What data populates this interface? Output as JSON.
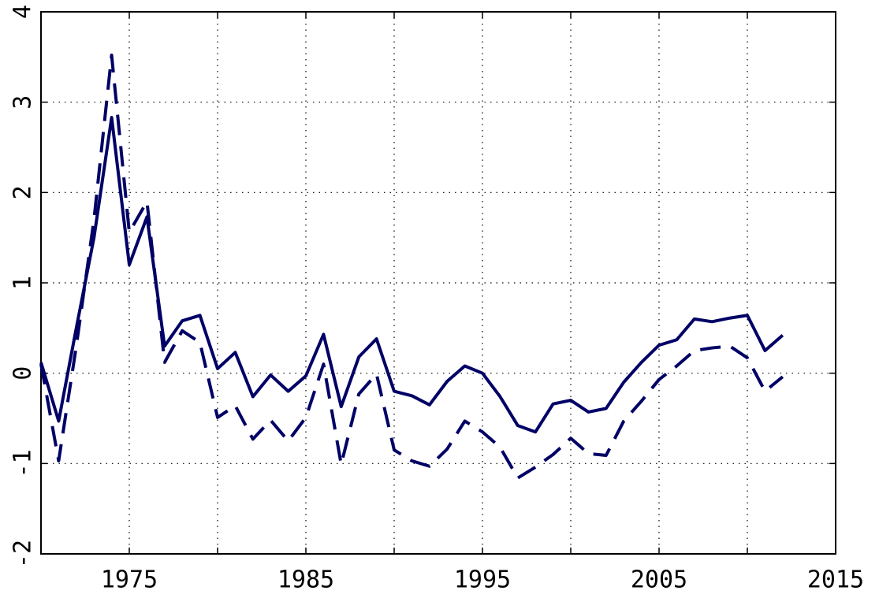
{
  "chart_data": {
    "type": "line",
    "x": [
      1970,
      1971,
      1972,
      1973,
      1974,
      1975,
      1976,
      1977,
      1978,
      1979,
      1980,
      1981,
      1982,
      1983,
      1984,
      1985,
      1986,
      1987,
      1988,
      1989,
      1990,
      1991,
      1992,
      1993,
      1994,
      1995,
      1996,
      1997,
      1998,
      1999,
      2000,
      2001,
      2002,
      2003,
      2004,
      2005,
      2006,
      2007,
      2008,
      2009,
      2010,
      2011,
      2012
    ],
    "series": [
      {
        "color": "#000066",
        "dash": false,
        "values": [
          0.12,
          -0.53,
          0.5,
          1.5,
          2.83,
          1.2,
          1.73,
          0.3,
          0.58,
          0.64,
          0.05,
          0.23,
          -0.26,
          -0.02,
          -0.2,
          -0.03,
          0.43,
          -0.37,
          0.18,
          0.38,
          -0.2,
          -0.25,
          -0.35,
          -0.09,
          0.08,
          0,
          -0.26,
          -0.58,
          -0.65,
          -0.34,
          -0.3,
          -0.43,
          -0.39,
          -0.1,
          0.12,
          0.31,
          0.37,
          0.6,
          0.57,
          0.61,
          0.64,
          0.25,
          0.42
        ]
      },
      {
        "color": "#000066",
        "dash": true,
        "values": [
          0.1,
          -0.97,
          0.3,
          1.7,
          3.52,
          1.56,
          1.9,
          0.12,
          0.47,
          0.34,
          -0.49,
          -0.36,
          -0.73,
          -0.52,
          -0.75,
          -0.49,
          0.1,
          -1.01,
          -0.23,
          -0.01,
          -0.85,
          -0.97,
          -1.03,
          -0.84,
          -0.53,
          -0.65,
          -0.82,
          -1.16,
          -1.04,
          -0.9,
          -0.72,
          -0.89,
          -0.91,
          -0.53,
          -0.31,
          -0.07,
          0.08,
          0.25,
          0.28,
          0.3,
          0.17,
          -0.2,
          -0.04
        ]
      }
    ],
    "xlim": [
      1970,
      2015
    ],
    "xticks": [
      1975,
      1985,
      1995,
      2005,
      2015
    ],
    "xminor": [
      1980,
      1990,
      2000,
      2010
    ],
    "ylim": [
      -2,
      4
    ],
    "yticks": [
      -2,
      -1,
      0,
      1,
      2,
      3,
      4
    ],
    "grid": true
  }
}
